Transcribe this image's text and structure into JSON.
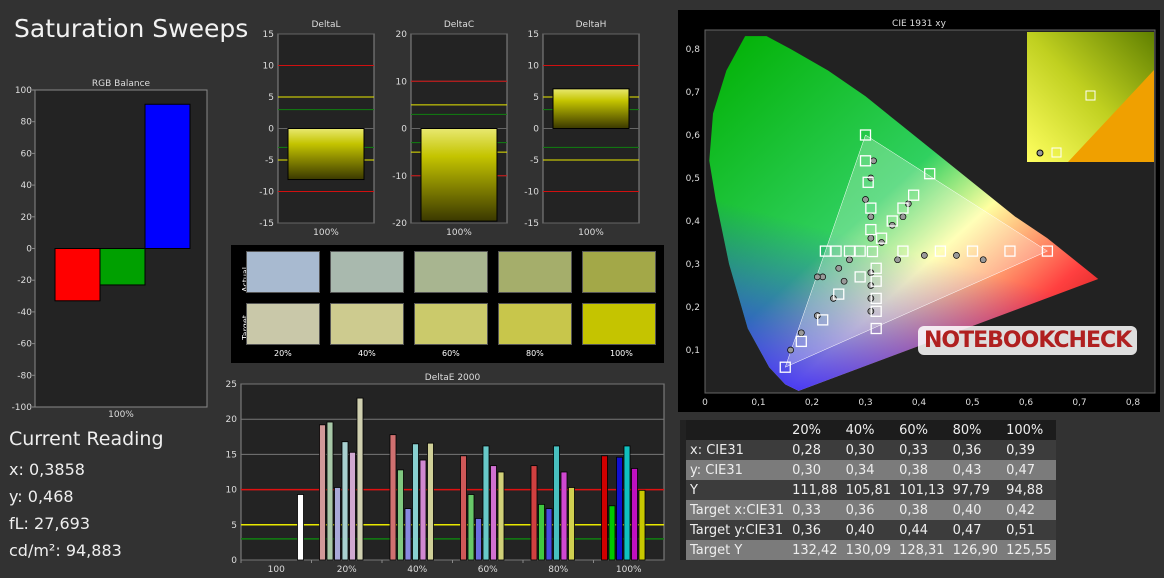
{
  "title": "Saturation Sweeps",
  "rgb_balance": {
    "title": "RGB Balance",
    "xlabel": "100%",
    "ylim": [
      -100,
      100
    ],
    "ticks": [
      100,
      80,
      60,
      40,
      20,
      0,
      -20,
      -40,
      -60,
      -80,
      -100
    ],
    "bars": [
      {
        "name": "Red",
        "value": -33,
        "color": "#ff0000"
      },
      {
        "name": "Green",
        "value": -23,
        "color": "#00a000"
      },
      {
        "name": "Blue",
        "value": 91,
        "color": "#0000ff"
      }
    ]
  },
  "current_reading": {
    "heading": "Current Reading",
    "x": "x: 0,3858",
    "y": "y: 0,468",
    "fl": "fL: 27,693",
    "cdm2": "cd/m²: 94,883"
  },
  "chart_data": [
    {
      "type": "bar",
      "title": "DeltaL",
      "categories": [
        "100%"
      ],
      "values": [
        -8.1
      ],
      "ylim": [
        -15,
        15
      ],
      "ticks": [
        15,
        10,
        5,
        0,
        -5,
        -10,
        -15
      ]
    },
    {
      "type": "bar",
      "title": "DeltaC",
      "categories": [
        "100%"
      ],
      "values": [
        -19.6
      ],
      "ylim": [
        -20,
        20
      ],
      "ticks": [
        20,
        10,
        0,
        -10,
        -20
      ]
    },
    {
      "type": "bar",
      "title": "DeltaH",
      "categories": [
        "100%"
      ],
      "values": [
        6.3
      ],
      "ylim": [
        -15,
        15
      ],
      "ticks": [
        15,
        10,
        5,
        0,
        -5,
        -10,
        -15
      ]
    },
    {
      "type": "bar",
      "title": "DeltaE 2000",
      "ylim": [
        0,
        25
      ],
      "ticks": [
        25,
        20,
        15,
        10,
        5,
        0
      ],
      "categories": [
        "100",
        "20%",
        "40%",
        "60%",
        "80%",
        "100%"
      ],
      "colors": [
        "#e05050",
        "#50c050",
        "#6060e0",
        "#40c8c8",
        "#d050d0",
        "#d0d040"
      ],
      "groups": [
        {
          "label": "100",
          "values": [
            9.3
          ],
          "colors": [
            "#ffffff"
          ]
        },
        {
          "label": "20%",
          "values": [
            19.2,
            19.6,
            10.3,
            16.8,
            15.3,
            23.0
          ],
          "colors": [
            "#d09898",
            "#a8c8a8",
            "#a8a8d8",
            "#a8d0d0",
            "#d0a8d0",
            "#d0d0b0"
          ]
        },
        {
          "label": "40%",
          "values": [
            17.8,
            12.8,
            7.3,
            16.5,
            14.2,
            16.6
          ],
          "colors": [
            "#d07070",
            "#80c880",
            "#8888e0",
            "#88d0d0",
            "#d088d0",
            "#d0d098"
          ]
        },
        {
          "label": "60%",
          "values": [
            14.8,
            9.3,
            5.9,
            16.2,
            13.4,
            12.5
          ],
          "colors": [
            "#d05858",
            "#68c868",
            "#6c6ce0",
            "#68c8c8",
            "#d070d0",
            "#d0d078"
          ]
        },
        {
          "label": "80%",
          "values": [
            13.4,
            7.9,
            7.3,
            16.2,
            12.5,
            10.3
          ],
          "colors": [
            "#d04040",
            "#40c840",
            "#4848e0",
            "#48c0c0",
            "#d048d0",
            "#d0d050"
          ]
        },
        {
          "label": "100%",
          "values": [
            14.8,
            7.7,
            14.6,
            16.2,
            13.0,
            9.9
          ],
          "colors": [
            "#d00000",
            "#00c800",
            "#1010d0",
            "#10c0c0",
            "#c010c0",
            "#c8c800"
          ]
        }
      ],
      "reference_lines": [
        {
          "value": 10,
          "color": "#e01010"
        },
        {
          "value": 5,
          "color": "#e8e800"
        },
        {
          "value": 3,
          "color": "#108010"
        }
      ]
    },
    {
      "type": "scatter",
      "title": "CIE 1931 xy",
      "xlim": [
        0,
        0.85
      ],
      "ylim": [
        0,
        0.85
      ],
      "xticks": [
        0,
        0.1,
        0.2,
        0.3,
        0.4,
        0.5,
        0.6,
        0.7,
        0.8
      ],
      "yticks": [
        0.1,
        0.2,
        0.3,
        0.4,
        0.5,
        0.6,
        0.7,
        0.8
      ],
      "targets": [
        [
          0.313,
          0.329
        ],
        [
          0.37,
          0.33
        ],
        [
          0.44,
          0.33
        ],
        [
          0.5,
          0.33
        ],
        [
          0.57,
          0.33
        ],
        [
          0.64,
          0.33
        ],
        [
          0.31,
          0.38
        ],
        [
          0.31,
          0.43
        ],
        [
          0.305,
          0.49
        ],
        [
          0.3,
          0.54
        ],
        [
          0.3,
          0.6
        ],
        [
          0.29,
          0.33
        ],
        [
          0.27,
          0.33
        ],
        [
          0.245,
          0.33
        ],
        [
          0.225,
          0.33
        ],
        [
          0.32,
          0.29
        ],
        [
          0.32,
          0.26
        ],
        [
          0.32,
          0.22
        ],
        [
          0.32,
          0.19
        ],
        [
          0.32,
          0.15
        ],
        [
          0.29,
          0.27
        ],
        [
          0.25,
          0.23
        ],
        [
          0.22,
          0.17
        ],
        [
          0.18,
          0.12
        ],
        [
          0.15,
          0.06
        ],
        [
          0.33,
          0.36
        ],
        [
          0.35,
          0.4
        ],
        [
          0.37,
          0.43
        ],
        [
          0.39,
          0.46
        ],
        [
          0.42,
          0.51
        ]
      ],
      "measured": [
        [
          0.36,
          0.31
        ],
        [
          0.41,
          0.32
        ],
        [
          0.47,
          0.32
        ],
        [
          0.52,
          0.31
        ],
        [
          0.31,
          0.36
        ],
        [
          0.31,
          0.41
        ],
        [
          0.3,
          0.45
        ],
        [
          0.31,
          0.5
        ],
        [
          0.315,
          0.54
        ],
        [
          0.27,
          0.31
        ],
        [
          0.25,
          0.29
        ],
        [
          0.22,
          0.27
        ],
        [
          0.21,
          0.27
        ],
        [
          0.31,
          0.28
        ],
        [
          0.31,
          0.25
        ],
        [
          0.31,
          0.22
        ],
        [
          0.31,
          0.19
        ],
        [
          0.26,
          0.26
        ],
        [
          0.24,
          0.22
        ],
        [
          0.21,
          0.18
        ],
        [
          0.18,
          0.14
        ],
        [
          0.16,
          0.1
        ],
        [
          0.33,
          0.35
        ],
        [
          0.35,
          0.39
        ],
        [
          0.37,
          0.41
        ],
        [
          0.38,
          0.44
        ]
      ],
      "legend_inset": true
    }
  ],
  "swatches": {
    "actual_label": "Actual",
    "target_label": "Target",
    "labels": [
      "20%",
      "40%",
      "60%",
      "80%",
      "100%"
    ],
    "actual": [
      "#a8bad0",
      "#a9b9ae",
      "#a8b590",
      "#a5ae6b",
      "#a3a848"
    ],
    "target": [
      "#c9c8a9",
      "#cdcb8f",
      "#cbca6b",
      "#c8c64b",
      "#c5c400"
    ]
  },
  "logo": "NOTEBOOKCHECK",
  "table": {
    "headers": [
      "20%",
      "40%",
      "60%",
      "80%",
      "100%"
    ],
    "rows": [
      {
        "label": "x: CIE31",
        "values": [
          "0,28",
          "0,30",
          "0,33",
          "0,36",
          "0,39"
        ]
      },
      {
        "label": "y: CIE31",
        "values": [
          "0,30",
          "0,34",
          "0,38",
          "0,43",
          "0,47"
        ]
      },
      {
        "label": "Y",
        "values": [
          "111,88",
          "105,81",
          "101,13",
          "97,79",
          "94,88"
        ]
      },
      {
        "label": "Target x:CIE31",
        "values": [
          "0,33",
          "0,36",
          "0,38",
          "0,40",
          "0,42"
        ]
      },
      {
        "label": "Target y:CIE31",
        "values": [
          "0,36",
          "0,40",
          "0,44",
          "0,47",
          "0,51"
        ]
      },
      {
        "label": "Target Y",
        "values": [
          "132,42",
          "130,09",
          "128,31",
          "126,90",
          "125,55"
        ]
      }
    ]
  }
}
